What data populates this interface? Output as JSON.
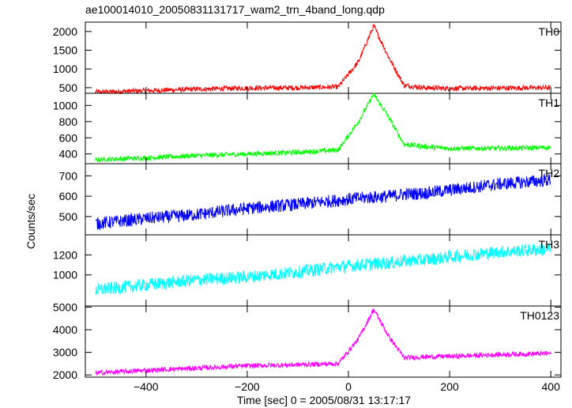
{
  "header": {
    "title": "ae100014010_20050831131717_wam2_trn_4band_long.qdp"
  },
  "axes": {
    "xlabel": "Time [sec] 0 = 2005/08/31 13:17:17",
    "ylabel": "Counts/sec"
  },
  "chart_data": {
    "type": "line",
    "title": "ae100014010_20050831131717_wam2_trn_4band_long.qdp",
    "xlabel": "Time [sec] 0 = 2005/08/31 13:17:17",
    "ylabel": "Counts/sec",
    "xlim": [
      -520,
      420
    ],
    "xticks": [
      -400,
      -200,
      0,
      200,
      400
    ],
    "x_sample": [
      -500,
      -400,
      -300,
      -200,
      -100,
      -20,
      20,
      50,
      80,
      110,
      150,
      200,
      300,
      400
    ],
    "series": [
      {
        "name": "TH0",
        "color": "#ff0000",
        "ylim": [
          350,
          2250
        ],
        "yticks": [
          500,
          1000,
          1500,
          2000
        ],
        "values": [
          380,
          420,
          460,
          490,
          500,
          520,
          1200,
          2150,
          1300,
          560,
          500,
          480,
          490,
          500
        ]
      },
      {
        "name": "TH1",
        "color": "#00ff00",
        "ylim": [
          280,
          1150
        ],
        "yticks": [
          400,
          600,
          800,
          1000
        ],
        "values": [
          330,
          350,
          380,
          400,
          420,
          450,
          800,
          1140,
          850,
          520,
          490,
          470,
          470,
          480
        ]
      },
      {
        "name": "TH2",
        "color": "#0000ff",
        "ylim": [
          410,
          760
        ],
        "yticks": [
          500,
          600,
          700
        ],
        "values": [
          465,
          490,
          510,
          540,
          560,
          580,
          590,
          595,
          600,
          610,
          615,
          630,
          660,
          680
        ]
      },
      {
        "name": "TH3",
        "color": "#00ffff",
        "ylim": [
          690,
          1400
        ],
        "yticks": [
          1000,
          1200
        ],
        "values": [
          850,
          900,
          950,
          980,
          1030,
          1080,
          1100,
          1110,
          1120,
          1140,
          1150,
          1180,
          1230,
          1260
        ]
      },
      {
        "name": "TH0123",
        "color": "#ff00ff",
        "ylim": [
          1900,
          5050
        ],
        "yticks": [
          2000,
          3000,
          4000,
          5000
        ],
        "values": [
          2080,
          2200,
          2300,
          2400,
          2450,
          2500,
          3600,
          4900,
          3700,
          2750,
          2800,
          2820,
          2900,
          2950
        ]
      }
    ]
  }
}
